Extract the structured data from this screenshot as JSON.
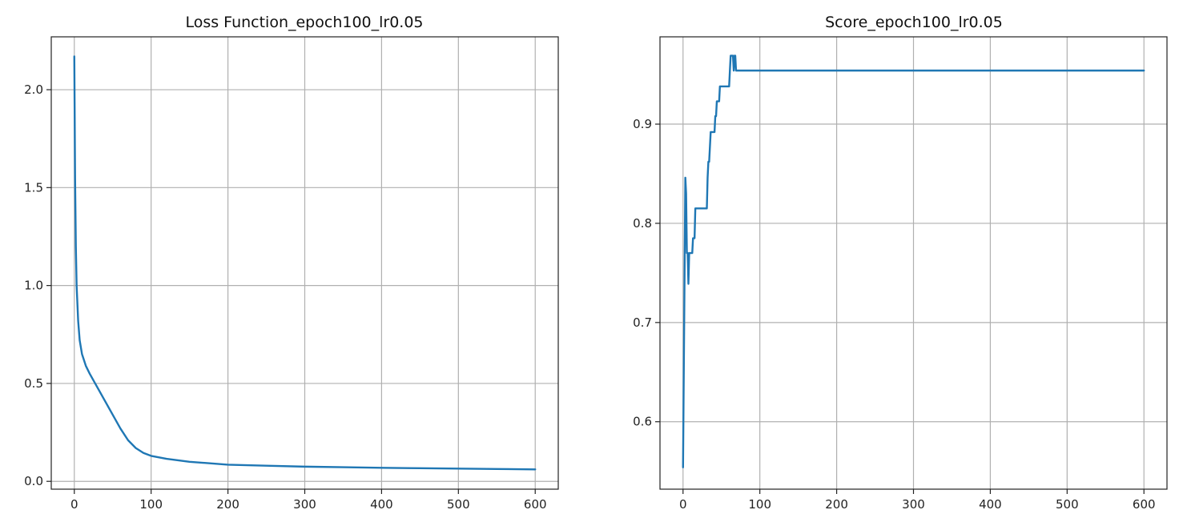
{
  "chart_data": [
    {
      "type": "line",
      "title": "Loss Function_epoch100_lr0.05",
      "xlabel": "",
      "ylabel": "",
      "xlim": [
        -30,
        630
      ],
      "ylim": [
        -0.04,
        2.27
      ],
      "xticks": [
        0,
        100,
        200,
        300,
        400,
        500,
        600
      ],
      "yticks": [
        0.0,
        0.5,
        1.0,
        1.5,
        2.0
      ],
      "ytick_labels": [
        "0.0",
        "0.5",
        "1.0",
        "1.5",
        "2.0"
      ],
      "grid": true,
      "color": "#1f77b4",
      "series": [
        {
          "x": [
            0,
            1,
            2,
            3,
            5,
            7,
            10,
            15,
            20,
            30,
            40,
            50,
            60,
            70,
            80,
            90,
            100,
            120,
            150,
            200,
            250,
            300,
            350,
            400,
            450,
            500,
            550,
            600
          ],
          "y": [
            2.17,
            1.55,
            1.2,
            1.0,
            0.82,
            0.72,
            0.65,
            0.59,
            0.55,
            0.48,
            0.41,
            0.34,
            0.27,
            0.21,
            0.17,
            0.145,
            0.13,
            0.115,
            0.1,
            0.085,
            0.08,
            0.075,
            0.072,
            0.069,
            0.067,
            0.065,
            0.063,
            0.061
          ]
        }
      ]
    },
    {
      "type": "line",
      "title": "Score_epoch100_lr0.05",
      "xlabel": "",
      "ylabel": "",
      "xlim": [
        -30,
        630
      ],
      "ylim": [
        0.532,
        0.988
      ],
      "xticks": [
        0,
        100,
        200,
        300,
        400,
        500,
        600
      ],
      "yticks": [
        0.6,
        0.7,
        0.8,
        0.9
      ],
      "ytick_labels": [
        "0.6",
        "0.7",
        "0.8",
        "0.9"
      ],
      "grid": true,
      "color": "#1f77b4",
      "series": [
        {
          "x": [
            0,
            3,
            4,
            5,
            6,
            7,
            8,
            9,
            10,
            11,
            12,
            13,
            14,
            15,
            16,
            17,
            18,
            30,
            31,
            32,
            33,
            34,
            35,
            36,
            37,
            40,
            41,
            42,
            43,
            44,
            45,
            46,
            47,
            48,
            50,
            51,
            60,
            61,
            62,
            63,
            64,
            65,
            66,
            67,
            68,
            69,
            70,
            71,
            600
          ],
          "y": [
            0.554,
            0.846,
            0.83,
            0.77,
            0.77,
            0.739,
            0.77,
            0.77,
            0.77,
            0.77,
            0.77,
            0.785,
            0.785,
            0.785,
            0.815,
            0.815,
            0.815,
            0.815,
            0.815,
            0.846,
            0.862,
            0.862,
            0.877,
            0.892,
            0.892,
            0.892,
            0.892,
            0.908,
            0.908,
            0.923,
            0.923,
            0.923,
            0.923,
            0.938,
            0.938,
            0.938,
            0.938,
            0.954,
            0.969,
            0.969,
            0.969,
            0.969,
            0.954,
            0.969,
            0.969,
            0.954,
            0.954,
            0.954,
            0.954
          ]
        }
      ]
    }
  ]
}
